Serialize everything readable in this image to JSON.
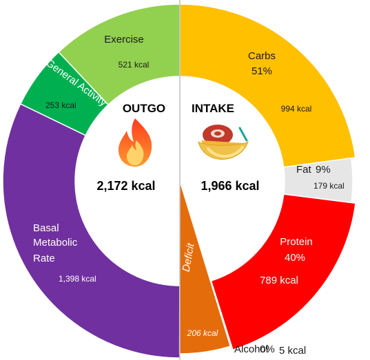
{
  "chart_data": {
    "type": "pie",
    "variant": "dual-half-donut",
    "outgo": {
      "title": "OUTGO",
      "total_label": "2,172 kcal",
      "icon": "flame-icon",
      "slices": [
        {
          "name": "Exercise",
          "kcal": 521,
          "value_label": "521 kcal",
          "color": "#92d050"
        },
        {
          "name": "General Activity",
          "kcal": 253,
          "value_label": "253 kcal",
          "color": "#00b050"
        },
        {
          "name": "Basal Metabolic Rate",
          "kcal": 1398,
          "value_label": "1,398 kcal",
          "color": "#7030a0"
        }
      ]
    },
    "intake": {
      "title": "INTAKE",
      "total_label": "1,966 kcal",
      "icon": "food-bowl-icon",
      "slices": [
        {
          "name": "Carbs",
          "percent_label": "51%",
          "kcal": 994,
          "value_label": "994 kcal",
          "color": "#ffc000"
        },
        {
          "name": "Fat",
          "percent_label": "9%",
          "kcal": 179,
          "value_label": "179 kcal",
          "color": "#e6e6e6"
        },
        {
          "name": "Protein",
          "percent_label": "40%",
          "kcal": 789,
          "value_label": "789 kcal",
          "color": "#ff0000"
        },
        {
          "name": "Alcohol",
          "percent_label": "0%",
          "kcal": 5,
          "value_label": "5 kcal",
          "color": "#a0a0a0"
        }
      ],
      "deficit": {
        "name": "Deficit",
        "kcal": 206,
        "value_label": "206 kcal",
        "color": "#e46c0a"
      }
    }
  }
}
